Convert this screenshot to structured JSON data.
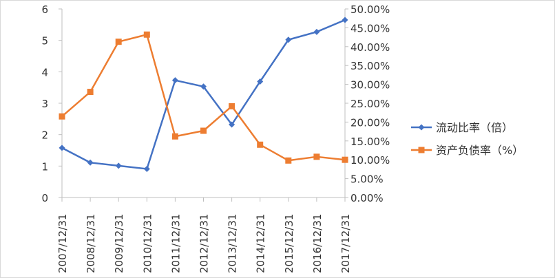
{
  "chart_data": {
    "type": "line",
    "categories": [
      "2007/12/31",
      "2008/12/31",
      "2009/12/31",
      "2010/12/31",
      "2011/12/31",
      "2012/12/31",
      "2013/12/31",
      "2014/12/31",
      "2015/12/31",
      "2016/12/31",
      "2017/12/31"
    ],
    "series": [
      {
        "name": "流动比率（倍）",
        "axis": "left",
        "color": "#4472C4",
        "marker": "diamond",
        "values": [
          1.58,
          1.11,
          1.01,
          0.91,
          3.73,
          3.53,
          2.32,
          3.69,
          5.02,
          5.27,
          5.65
        ]
      },
      {
        "name": "资产负债率（%）",
        "axis": "right",
        "color": "#ED7D31",
        "marker": "square",
        "values": [
          0.215,
          0.28,
          0.413,
          0.432,
          0.162,
          0.177,
          0.242,
          0.14,
          0.098,
          0.108,
          0.1
        ]
      }
    ],
    "y_left": {
      "min": 0,
      "max": 6,
      "ticks": [
        "0",
        "1",
        "2",
        "3",
        "4",
        "5",
        "6"
      ]
    },
    "y_right": {
      "min": 0,
      "max": 0.5,
      "ticks": [
        "0.00%",
        "5.00%",
        "10.00%",
        "15.00%",
        "20.00%",
        "25.00%",
        "30.00%",
        "35.00%",
        "40.00%",
        "45.00%",
        "50.00%"
      ]
    },
    "grid": false,
    "legend_position": "right",
    "title": "",
    "xlabel": "",
    "ylabel": ""
  }
}
